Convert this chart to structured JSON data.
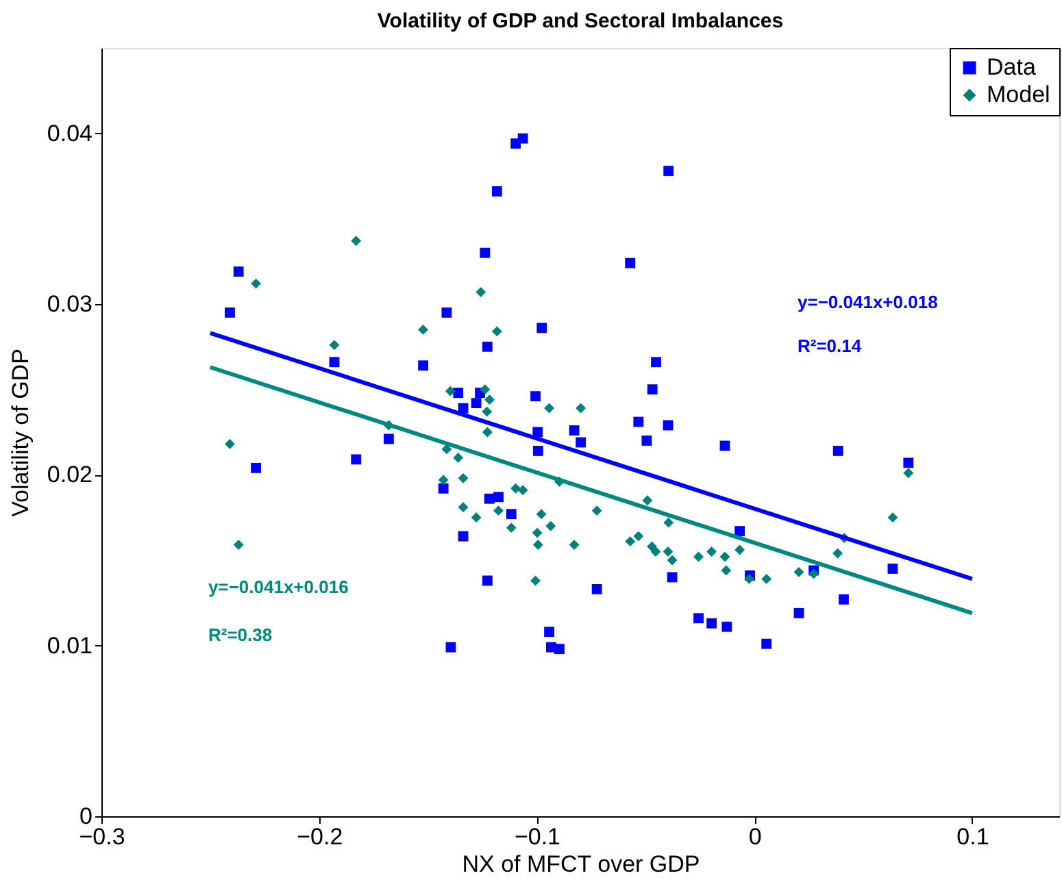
{
  "chart_data": {
    "type": "scatter",
    "title": "Volatility of GDP and Sectoral Imbalances",
    "xlabel": "NX of MFCT over GDP",
    "ylabel": "Volatility of GDP",
    "xlim": [
      -0.3,
      0.14
    ],
    "ylim": [
      0,
      0.045
    ],
    "xticks": [
      {
        "value": -0.3,
        "label": "−0.3"
      },
      {
        "value": -0.2,
        "label": "−0.2"
      },
      {
        "value": -0.1,
        "label": "−0.1"
      },
      0,
      0.1
    ],
    "yticks": [
      0,
      0.01,
      0.02,
      0.03,
      0.04
    ],
    "grid": false,
    "legend": "top right",
    "series": [
      {
        "name": "Data",
        "type": "scatter",
        "marker": "square",
        "color": "#0000ff",
        "x": [
          -0.237,
          -0.241,
          -0.193,
          -0.168,
          -0.183,
          -0.229,
          -0.1064,
          -0.1097,
          -0.0395,
          -0.1183,
          -0.1238,
          -0.0571,
          -0.1414,
          -0.0977,
          -0.1227,
          -0.1522,
          -0.0452,
          -0.0469,
          -0.1361,
          -0.1261,
          -0.1006,
          -0.1338,
          -0.1278,
          -0.0533,
          -0.0397,
          -0.0996,
          -0.0828,
          -0.0798,
          -0.0495,
          -0.0994,
          -0.1429,
          -0.1218,
          -0.1176,
          -0.1117,
          -0.1338,
          -0.1227,
          -0.0724,
          -0.0378,
          -0.0257,
          -0.0197,
          -0.0943,
          -0.0934,
          -0.0896,
          -0.1395,
          -0.0136,
          0.0384,
          0.0707,
          -0.0068,
          -0.0021,
          0.0272,
          0.0635,
          0.041,
          0.0204,
          -0.0127,
          0.0055
        ],
        "values": [
          0.0319,
          0.0295,
          0.0266,
          0.0221,
          0.0209,
          0.0204,
          0.0397,
          0.0394,
          0.0378,
          0.0366,
          0.033,
          0.0324,
          0.0295,
          0.0286,
          0.0275,
          0.0264,
          0.0266,
          0.025,
          0.0248,
          0.0248,
          0.0246,
          0.0239,
          0.0242,
          0.0231,
          0.0229,
          0.0225,
          0.0226,
          0.0219,
          0.022,
          0.0214,
          0.0192,
          0.0186,
          0.0187,
          0.0177,
          0.0164,
          0.0138,
          0.0133,
          0.014,
          0.0116,
          0.0113,
          0.0108,
          0.0099,
          0.0098,
          0.0099,
          0.0217,
          0.0214,
          0.0207,
          0.0167,
          0.0141,
          0.0144,
          0.0145,
          0.0127,
          0.0119,
          0.0111,
          0.0101
        ]
      },
      {
        "name": "Model",
        "type": "scatter",
        "marker": "diamond",
        "color": "#00807a",
        "x": [
          -0.183,
          -0.229,
          -0.193,
          -0.168,
          -0.241,
          -0.237,
          -0.1257,
          -0.1522,
          -0.1183,
          -0.1397,
          -0.1238,
          -0.1217,
          -0.1229,
          -0.0943,
          -0.0798,
          -0.1227,
          -0.1414,
          -0.1361,
          -0.1338,
          -0.1429,
          -0.1097,
          -0.1064,
          -0.0896,
          -0.1338,
          -0.1278,
          -0.1176,
          -0.1117,
          -0.0979,
          -0.0936,
          -0.0998,
          -0.0994,
          -0.0828,
          -0.0724,
          -0.1006,
          -0.0492,
          -0.0395,
          -0.0571,
          -0.0533,
          -0.0471,
          -0.0454,
          -0.0397,
          -0.0378,
          -0.0257,
          -0.0197,
          0.0707,
          0.0635,
          0.0412,
          0.0382,
          -0.0136,
          -0.013,
          -0.0068,
          -0.0024,
          0.0055,
          0.0204,
          0.0272
        ],
        "values": [
          0.0337,
          0.0312,
          0.0276,
          0.0229,
          0.0218,
          0.0159,
          0.0307,
          0.0285,
          0.0284,
          0.0249,
          0.025,
          0.0244,
          0.0237,
          0.0239,
          0.0239,
          0.0225,
          0.0215,
          0.021,
          0.0198,
          0.0197,
          0.0192,
          0.0191,
          0.0196,
          0.0181,
          0.0175,
          0.0179,
          0.0169,
          0.0177,
          0.017,
          0.0166,
          0.0159,
          0.0159,
          0.0179,
          0.0138,
          0.0185,
          0.0172,
          0.0161,
          0.0164,
          0.0158,
          0.0155,
          0.0155,
          0.015,
          0.0152,
          0.0155,
          0.0201,
          0.0175,
          0.0163,
          0.0154,
          0.0152,
          0.0144,
          0.0156,
          0.0139,
          0.0139,
          0.0143,
          0.0142
        ]
      },
      {
        "type": "line",
        "color": "#0000ff",
        "x": [
          -0.25,
          0.1
        ],
        "values": [
          0.0283,
          0.0139
        ]
      },
      {
        "type": "line",
        "color": "#00897f",
        "x": [
          -0.25,
          0.1
        ],
        "values": [
          0.0263,
          0.0119
        ]
      }
    ],
    "annotations": [
      "y=−0.041x+0.018",
      "R²=0.14",
      "y=−0.041x+0.016",
      "R²=0.38"
    ]
  }
}
